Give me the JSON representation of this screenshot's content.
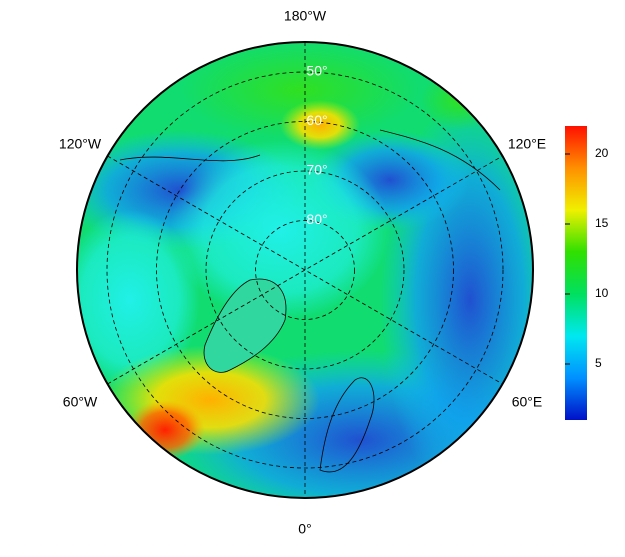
{
  "map": {
    "lon_labels": [
      "180°W",
      "120°E",
      "60°E",
      "0°",
      "60°W",
      "120°W"
    ],
    "lat_labels": [
      {
        "value": 50,
        "label": "50°"
      },
      {
        "value": 60,
        "label": "60°"
      },
      {
        "value": 70,
        "label": "70°"
      },
      {
        "value": 80,
        "label": "80°"
      }
    ],
    "colorbar": {
      "lim": [
        1,
        22
      ],
      "ticks": [
        5,
        10,
        15,
        20
      ],
      "colormap": [
        "#0010c8",
        "#0090ff",
        "#00e8f0",
        "#00e060",
        "#30e000",
        "#f0f000",
        "#ff9000",
        "#ff1000"
      ]
    }
  }
}
